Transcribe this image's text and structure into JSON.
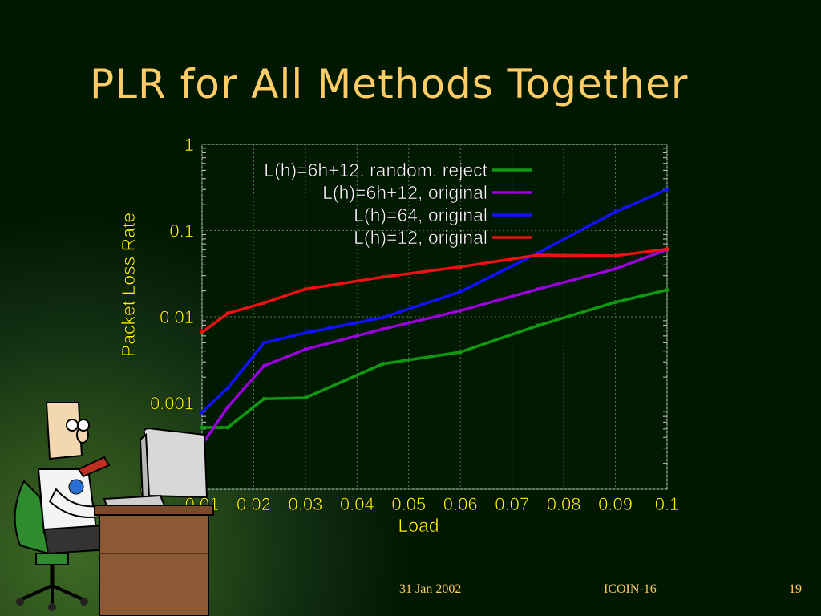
{
  "slide": {
    "title": "PLR for All Methods Together",
    "footer_date": "31 Jan 2002",
    "footer_conference": "ICOIN-16",
    "page_number": "19"
  },
  "colors": {
    "background": "#001800",
    "title": "#ffcc66",
    "axis_text": "#ffff00",
    "legend_text": "#ffffff"
  },
  "chart_data": {
    "type": "line",
    "xlabel": "Load",
    "ylabel": "Packet Loss Rate",
    "xlim": [
      0.01,
      0.1
    ],
    "ylim": [
      0.0001,
      1
    ],
    "yscale": "log",
    "grid": true,
    "legend_position": "top-left",
    "x_ticks": [
      "0.01",
      "0.02",
      "0.03",
      "0.04",
      "0.05",
      "0.06",
      "0.07",
      "0.08",
      "0.09",
      "0.1"
    ],
    "y_ticks": [
      "1",
      "0.1",
      "0.01",
      "0.001",
      "0.0001"
    ],
    "series": [
      {
        "name": "L(h)=6h+12, random, reject",
        "color": "#119911",
        "x": [
          0.01,
          0.015,
          0.022,
          0.03,
          0.045,
          0.06,
          0.075,
          0.09,
          0.1
        ],
        "y": [
          0.00052,
          0.00052,
          0.00112,
          0.00115,
          0.00285,
          0.0039,
          0.0079,
          0.0148,
          0.0205
        ]
      },
      {
        "name": "L(h)=6h+12, original",
        "color": "#9900dd",
        "x": [
          0.01,
          0.015,
          0.022,
          0.03,
          0.045,
          0.06,
          0.075,
          0.09,
          0.1
        ],
        "y": [
          0.00033,
          0.0009,
          0.0027,
          0.0042,
          0.0072,
          0.0118,
          0.021,
          0.036,
          0.06
        ]
      },
      {
        "name": "L(h)=64, original",
        "color": "#1111ff",
        "x": [
          0.01,
          0.015,
          0.022,
          0.03,
          0.045,
          0.06,
          0.075,
          0.09,
          0.1
        ],
        "y": [
          0.00078,
          0.0015,
          0.005,
          0.0065,
          0.0098,
          0.0195,
          0.055,
          0.165,
          0.3
        ]
      },
      {
        "name": "L(h)=12, original",
        "color": "#ee1111",
        "x": [
          0.01,
          0.015,
          0.022,
          0.03,
          0.045,
          0.06,
          0.075,
          0.09,
          0.1
        ],
        "y": [
          0.0066,
          0.011,
          0.0145,
          0.021,
          0.029,
          0.038,
          0.052,
          0.051,
          0.061
        ]
      }
    ]
  }
}
